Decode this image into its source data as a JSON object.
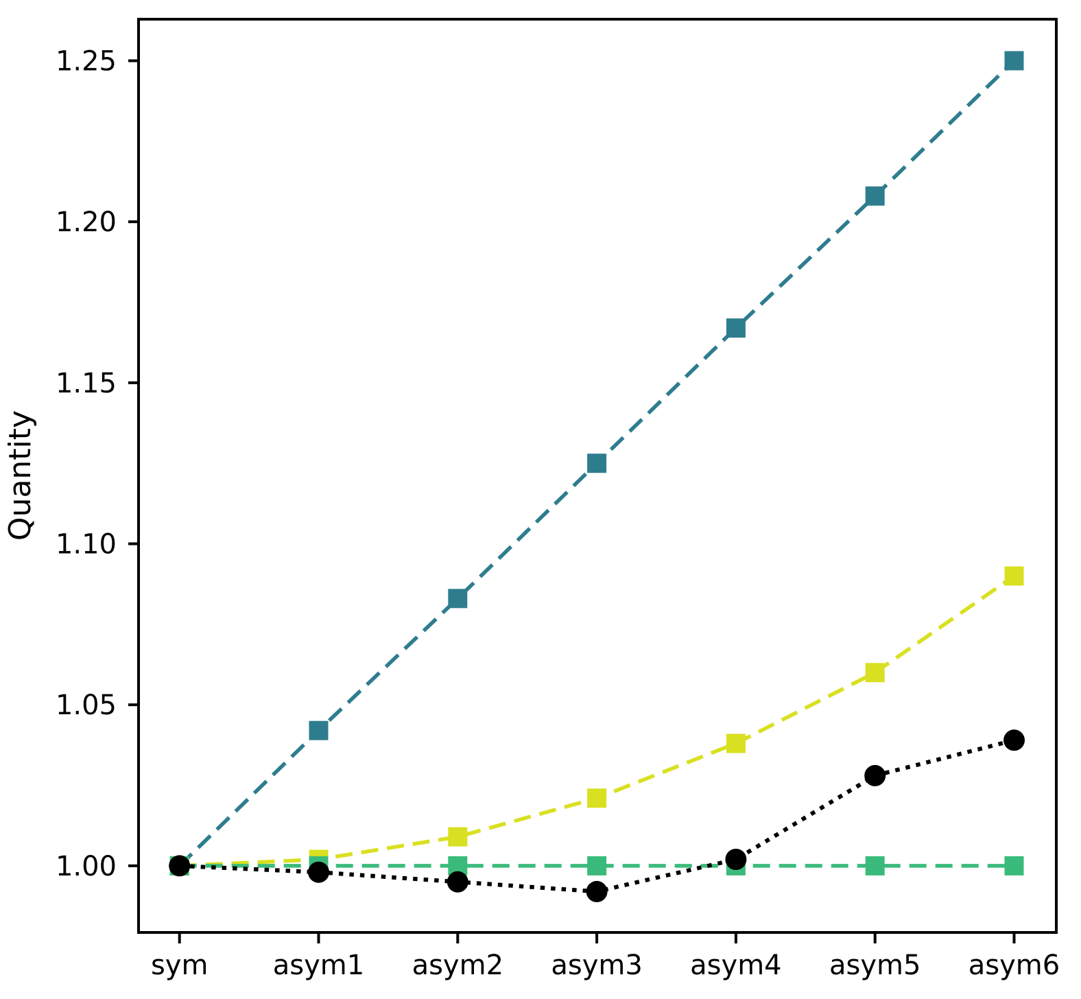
{
  "figure": {
    "background": "#ffffff",
    "ylabel": "Quantity"
  },
  "chart_data": {
    "type": "line",
    "title": "",
    "xlabel": "",
    "ylabel": "Quantity",
    "categories": [
      "sym",
      "asym1",
      "asym2",
      "asym3",
      "asym4",
      "asym5",
      "asym6"
    ],
    "series": [
      {
        "name": "teal-squares",
        "color": "#2e7d8e",
        "marker": "square",
        "linestyle": "dashed",
        "values": [
          1.0,
          1.042,
          1.083,
          1.125,
          1.167,
          1.208,
          1.25
        ]
      },
      {
        "name": "yellow-squares",
        "color": "#d9e021",
        "marker": "square",
        "linestyle": "dashed",
        "values": [
          1.0,
          1.002,
          1.009,
          1.021,
          1.038,
          1.06,
          1.09
        ]
      },
      {
        "name": "green-squares",
        "color": "#3bbb7b",
        "marker": "square",
        "linestyle": "dashed",
        "values": [
          1.0,
          1.0,
          1.0,
          1.0,
          1.0,
          1.0,
          1.0
        ]
      },
      {
        "name": "black-circles",
        "color": "#000000",
        "marker": "circle",
        "linestyle": "dotted",
        "values": [
          1.0,
          0.998,
          0.995,
          0.992,
          1.002,
          1.028,
          1.039
        ]
      }
    ],
    "yticks": [
      1.0,
      1.05,
      1.1,
      1.15,
      1.2,
      1.25
    ],
    "ytick_labels": [
      "1.00",
      "1.05",
      "1.10",
      "1.15",
      "1.20",
      "1.25"
    ],
    "ylim": [
      0.9793,
      1.2629
    ],
    "grid": false,
    "legend": false,
    "axis_color": "#000000"
  }
}
